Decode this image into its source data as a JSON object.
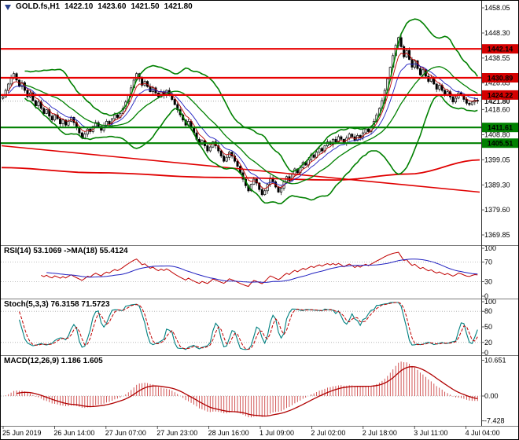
{
  "header": {
    "symbol": "GOLD.fs,H1",
    "open": "1422.10",
    "high": "1423.60",
    "low": "1421.50",
    "close": "1421.80"
  },
  "panels": {
    "rsi": {
      "label": "RSI(14) 53.1069 ->MA(18) 55.4124",
      "ticks": [
        100,
        70,
        30,
        0
      ],
      "grid": [
        70,
        30
      ]
    },
    "stoch": {
      "label": "Stoch(5,3,3) 76.3158 71.5723",
      "ticks": [
        100,
        80,
        50,
        20,
        0
      ],
      "grid": [
        80,
        20
      ]
    },
    "macd": {
      "label": "MACD(12,26,9) 1.186 1.605",
      "ticks": [
        "10.651",
        "0.00",
        "-7.428"
      ],
      "tick_values": [
        10.651,
        0,
        -7.428
      ]
    }
  },
  "price_axis": {
    "ticks": [
      1458.05,
      1448.3,
      1438.55,
      1428.85,
      1418.6,
      1408.8,
      1399.05,
      1389.3,
      1379.6,
      1369.85
    ],
    "current": "1421.80",
    "current_value": 1421.8
  },
  "time_axis": [
    "25 Jun 2019",
    "26 Jun 14:00",
    "27 Jun 07:00",
    "27 Jun 23:00",
    "28 Jun 16:00",
    "1 Jul 09:00",
    "2 Jul 02:00",
    "2 Jul 18:00",
    "3 Jul 11:00",
    "4 Jul 04:00"
  ],
  "colors": {
    "resistance": "#e80000",
    "support": "#008000",
    "badge_red": "#d40000",
    "badge_green": "#008000",
    "bollinger": "#008000",
    "ma_fast": "#c00000",
    "ma_slow": "#2020c0",
    "trend_red": "#e00000",
    "rsi_line": "#c00000",
    "rsi_ma": "#2020c0",
    "stoch_k": "#008080",
    "stoch_d": "#c00000",
    "macd_hist": "#cc4444",
    "macd_signal": "#b00000",
    "candle_stroke": "#000000"
  },
  "chart_data": {
    "type": "candlestick",
    "symbol": "GOLD.fs",
    "timeframe": "H1",
    "ohlc_display": {
      "open": 1422.1,
      "high": 1423.6,
      "low": 1421.5,
      "close": 1421.8
    },
    "price_range": [
      1366.5,
      1460.5
    ],
    "closes": [
      1423.5,
      1426,
      1428.5,
      1431,
      1432.5,
      1430,
      1427.5,
      1429,
      1426,
      1423.5,
      1425,
      1422,
      1420,
      1421.5,
      1419,
      1417,
      1418.5,
      1416,
      1414.5,
      1416.5,
      1415,
      1413,
      1414.5,
      1412.5,
      1414,
      1415.5,
      1413.5,
      1411.5,
      1409.5,
      1407.5,
      1409,
      1411,
      1410,
      1412,
      1413.5,
      1412,
      1410.5,
      1412.5,
      1414,
      1413,
      1415,
      1416.5,
      1415.5,
      1417,
      1419,
      1421.5,
      1424,
      1427,
      1430,
      1432.5,
      1430.5,
      1428,
      1429.5,
      1427.5,
      1425.5,
      1427,
      1425,
      1423.5,
      1425.5,
      1424,
      1426,
      1424.5,
      1422.5,
      1420.5,
      1418.5,
      1416.5,
      1414.5,
      1412.5,
      1414,
      1411.5,
      1409.5,
      1407,
      1405,
      1406.5,
      1404.5,
      1402.5,
      1404,
      1406,
      1404.5,
      1402.5,
      1400.5,
      1398.5,
      1400,
      1402,
      1400.5,
      1398.5,
      1396.5,
      1394,
      1391.5,
      1389,
      1387,
      1389.5,
      1391.5,
      1390,
      1387.5,
      1385.5,
      1387,
      1389.5,
      1392,
      1390.5,
      1388.5,
      1386.5,
      1388,
      1390.5,
      1392.5,
      1391,
      1393.5,
      1395.5,
      1394,
      1396,
      1398,
      1397,
      1399,
      1401,
      1400,
      1402,
      1403.5,
      1402.5,
      1404.5,
      1406,
      1405,
      1407,
      1406,
      1408,
      1407,
      1405.5,
      1407.5,
      1409,
      1408,
      1406.5,
      1408.5,
      1407.5,
      1409.5,
      1411,
      1410,
      1412,
      1414,
      1416.5,
      1419,
      1422,
      1426,
      1430.5,
      1435,
      1439.5,
      1443.5,
      1446.5,
      1443,
      1439,
      1441.5,
      1438,
      1435,
      1437.5,
      1434.5,
      1432,
      1434,
      1431.5,
      1429.5,
      1431,
      1428.5,
      1426.5,
      1428,
      1426,
      1424,
      1425.5,
      1423.5,
      1421.5,
      1423,
      1425,
      1424,
      1422.5,
      1421,
      1420.5,
      1421.5,
      1422.2,
      1421.8
    ],
    "levels": [
      {
        "price": 1442.14,
        "label": "1442.14",
        "kind": "resistance"
      },
      {
        "price": 1430.89,
        "label": "1430.89",
        "kind": "resistance"
      },
      {
        "price": 1424.22,
        "label": "1424.22",
        "kind": "resistance"
      },
      {
        "price": 1411.61,
        "label": "1411.61",
        "kind": "support"
      },
      {
        "price": 1405.51,
        "label": "1405.51",
        "kind": "support"
      }
    ],
    "trendline": [
      [
        0,
        1404.5
      ],
      [
        1,
        1386.5
      ]
    ],
    "long_ma": [
      [
        0,
        1396
      ],
      [
        0.2,
        1394
      ],
      [
        0.45,
        1392.2
      ],
      [
        0.7,
        1391.2
      ],
      [
        0.85,
        1393.5
      ],
      [
        1,
        1399
      ]
    ],
    "indicators": {
      "bollinger": {
        "period": 20,
        "deviation": 2
      },
      "ma_fast_period": 5,
      "ma_slow_period": 10,
      "rsi": {
        "period": 14,
        "value": 53.1069,
        "ma_period": 18,
        "ma_value": 55.4124
      },
      "stoch": {
        "k": 5,
        "slowing": 3,
        "d": 3,
        "k_value": 76.3158,
        "d_value": 71.5723
      },
      "macd": {
        "fast": 12,
        "slow": 26,
        "signal": 9,
        "value": 1.186,
        "signal_value": 1.605,
        "range": [
          -8.2,
          11.5
        ]
      }
    }
  }
}
